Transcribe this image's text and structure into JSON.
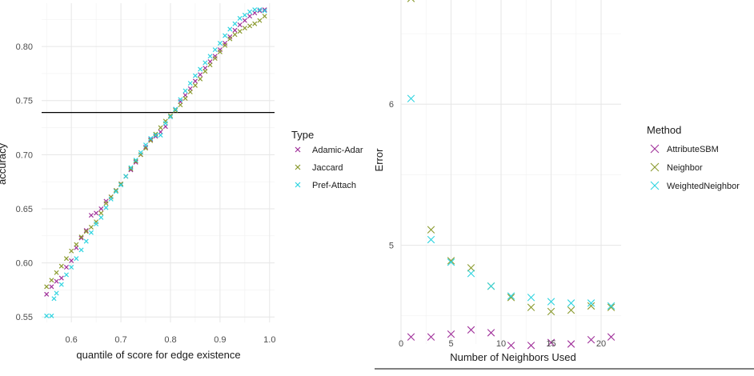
{
  "chart_data": [
    {
      "type": "scatter",
      "xlabel": "quantile of score for edge existence",
      "ylabel": "accuracy",
      "xlim": [
        0.54,
        1.01
      ],
      "ylim": [
        0.545,
        0.84
      ],
      "xticks": [
        "0.6",
        "0.7",
        "0.8",
        "0.9",
        "1.0"
      ],
      "yticks": [
        "0.55",
        "0.60",
        "0.65",
        "0.70",
        "0.75",
        "0.80"
      ],
      "hline": 0.739,
      "grid": true,
      "legend": {
        "title": "Type",
        "position": "right"
      },
      "series": [
        {
          "name": "Adamic-Adar",
          "color": "#a0309a",
          "x": [
            0.55,
            0.56,
            0.57,
            0.58,
            0.59,
            0.6,
            0.61,
            0.62,
            0.63,
            0.64,
            0.65,
            0.66,
            0.67,
            0.68,
            0.69,
            0.7,
            0.71,
            0.72,
            0.73,
            0.74,
            0.75,
            0.76,
            0.77,
            0.78,
            0.79,
            0.8,
            0.81,
            0.82,
            0.83,
            0.84,
            0.85,
            0.86,
            0.87,
            0.88,
            0.89,
            0.9,
            0.91,
            0.92,
            0.93,
            0.94,
            0.95,
            0.96,
            0.97,
            0.98,
            0.99
          ],
          "y": [
            0.571,
            0.578,
            0.583,
            0.586,
            0.596,
            0.602,
            0.614,
            0.623,
            0.63,
            0.644,
            0.646,
            0.65,
            0.657,
            0.661,
            0.667,
            0.673,
            0.68,
            0.686,
            0.693,
            0.7,
            0.707,
            0.714,
            0.717,
            0.721,
            0.726,
            0.735,
            0.742,
            0.749,
            0.755,
            0.761,
            0.768,
            0.774,
            0.78,
            0.786,
            0.791,
            0.797,
            0.803,
            0.809,
            0.815,
            0.82,
            0.824,
            0.828,
            0.831,
            0.833,
            0.834
          ]
        },
        {
          "name": "Jaccard",
          "color": "#8a9a2e",
          "x": [
            0.55,
            0.56,
            0.57,
            0.58,
            0.59,
            0.6,
            0.61,
            0.62,
            0.63,
            0.64,
            0.65,
            0.66,
            0.67,
            0.68,
            0.69,
            0.7,
            0.71,
            0.72,
            0.73,
            0.74,
            0.75,
            0.76,
            0.77,
            0.78,
            0.79,
            0.8,
            0.81,
            0.82,
            0.83,
            0.84,
            0.85,
            0.86,
            0.87,
            0.88,
            0.89,
            0.9,
            0.91,
            0.92,
            0.93,
            0.94,
            0.95,
            0.96,
            0.97,
            0.98,
            0.99
          ],
          "y": [
            0.578,
            0.584,
            0.591,
            0.597,
            0.604,
            0.611,
            0.617,
            0.624,
            0.629,
            0.633,
            0.638,
            0.646,
            0.655,
            0.661,
            0.667,
            0.673,
            0.68,
            0.687,
            0.694,
            0.7,
            0.706,
            0.713,
            0.719,
            0.725,
            0.731,
            0.736,
            0.741,
            0.746,
            0.752,
            0.758,
            0.764,
            0.77,
            0.777,
            0.783,
            0.789,
            0.795,
            0.801,
            0.807,
            0.811,
            0.814,
            0.817,
            0.819,
            0.821,
            0.824,
            0.828
          ]
        },
        {
          "name": "Pref-Attach",
          "color": "#2fd4e0",
          "x": [
            0.55,
            0.56,
            0.565,
            0.57,
            0.58,
            0.59,
            0.6,
            0.61,
            0.62,
            0.63,
            0.64,
            0.65,
            0.66,
            0.67,
            0.68,
            0.69,
            0.7,
            0.71,
            0.72,
            0.73,
            0.74,
            0.75,
            0.76,
            0.77,
            0.78,
            0.79,
            0.8,
            0.81,
            0.82,
            0.83,
            0.84,
            0.85,
            0.86,
            0.87,
            0.88,
            0.89,
            0.9,
            0.91,
            0.92,
            0.93,
            0.94,
            0.95,
            0.96,
            0.97,
            0.98,
            0.99
          ],
          "y": [
            0.551,
            0.551,
            0.567,
            0.572,
            0.58,
            0.589,
            0.596,
            0.604,
            0.612,
            0.62,
            0.628,
            0.636,
            0.642,
            0.651,
            0.659,
            0.666,
            0.672,
            0.68,
            0.688,
            0.695,
            0.702,
            0.709,
            0.715,
            0.718,
            0.718,
            0.729,
            0.735,
            0.742,
            0.751,
            0.759,
            0.766,
            0.773,
            0.779,
            0.785,
            0.791,
            0.797,
            0.803,
            0.81,
            0.816,
            0.821,
            0.826,
            0.829,
            0.832,
            0.834,
            0.834,
            0.833
          ]
        }
      ]
    },
    {
      "type": "scatter",
      "xlabel": "Number of Neighbors Used",
      "ylabel": "Error",
      "xlim": [
        0,
        22
      ],
      "ylim": [
        4.3,
        6.75
      ],
      "xticks": [
        "0",
        "5",
        "10",
        "15",
        "20"
      ],
      "yticks": [
        "5",
        "6"
      ],
      "grid": true,
      "legend": {
        "title": "Method",
        "position": "right"
      },
      "series": [
        {
          "name": "AttributeSBM",
          "color": "#a0309a",
          "x": [
            1,
            3,
            5,
            7,
            9,
            11,
            13,
            15,
            17,
            19,
            21
          ],
          "y": [
            4.35,
            4.35,
            4.37,
            4.4,
            4.38,
            4.29,
            4.29,
            4.31,
            4.3,
            4.33,
            4.35
          ]
        },
        {
          "name": "Neighbor",
          "color": "#8a9a2e",
          "x": [
            1,
            3,
            5,
            7,
            9,
            11,
            13,
            15,
            17,
            19,
            21
          ],
          "y": [
            6.75,
            5.11,
            4.89,
            4.84,
            4.71,
            4.63,
            4.56,
            4.53,
            4.54,
            4.57,
            4.56
          ]
        },
        {
          "name": "WeightedNeighbor",
          "color": "#2fd4e0",
          "x": [
            1,
            3,
            5,
            7,
            9,
            11,
            13,
            15,
            17,
            19,
            21
          ],
          "y": [
            6.04,
            5.04,
            4.88,
            4.8,
            4.71,
            4.64,
            4.63,
            4.6,
            4.59,
            4.59,
            4.57
          ]
        }
      ]
    }
  ]
}
